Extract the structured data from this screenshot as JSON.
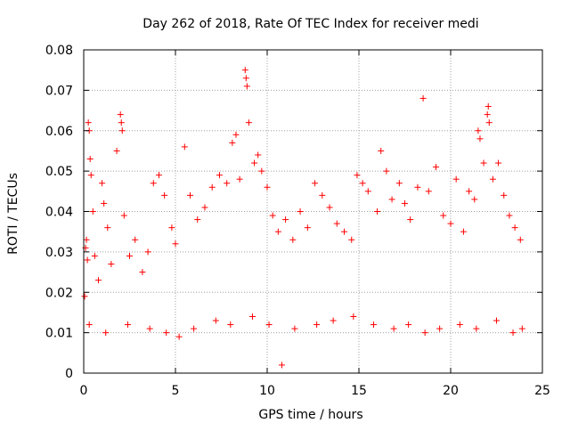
{
  "chart_data": {
    "type": "scatter",
    "title": "Day 262 of 2018, Rate Of TEC Index for receiver medi",
    "xlabel": "GPS time / hours",
    "ylabel": "ROTI / TECUs",
    "xlim": [
      0,
      25
    ],
    "ylim": [
      0,
      0.08
    ],
    "xticks": [
      0,
      5,
      10,
      15,
      20,
      25
    ],
    "xtick_labels": [
      "0",
      "5",
      "10",
      "15",
      "20",
      "25"
    ],
    "yticks": [
      0,
      0.01,
      0.02,
      0.03,
      0.04,
      0.05,
      0.06,
      0.07,
      0.08
    ],
    "ytick_labels": [
      "0",
      "0.01",
      "0.02",
      "0.03",
      "0.04",
      "0.05",
      "0.06",
      "0.07",
      "0.08"
    ],
    "grid": true,
    "legend": false,
    "marker": "plus",
    "marker_color": "#ff0000",
    "series": [
      {
        "name": "ROTI",
        "points": [
          [
            0.05,
            0.019
          ],
          [
            0.1,
            0.031
          ],
          [
            0.15,
            0.033
          ],
          [
            0.2,
            0.028
          ],
          [
            0.25,
            0.062
          ],
          [
            0.3,
            0.06
          ],
          [
            0.35,
            0.053
          ],
          [
            0.4,
            0.049
          ],
          [
            0.5,
            0.04
          ],
          [
            0.6,
            0.029
          ],
          [
            0.8,
            0.023
          ],
          [
            1.0,
            0.047
          ],
          [
            1.1,
            0.042
          ],
          [
            1.3,
            0.036
          ],
          [
            1.5,
            0.027
          ],
          [
            1.8,
            0.055
          ],
          [
            2.0,
            0.064
          ],
          [
            2.05,
            0.062
          ],
          [
            2.1,
            0.06
          ],
          [
            2.2,
            0.039
          ],
          [
            2.5,
            0.029
          ],
          [
            2.8,
            0.033
          ],
          [
            3.2,
            0.025
          ],
          [
            3.5,
            0.03
          ],
          [
            3.8,
            0.047
          ],
          [
            4.1,
            0.049
          ],
          [
            4.4,
            0.044
          ],
          [
            4.8,
            0.036
          ],
          [
            5.0,
            0.032
          ],
          [
            5.5,
            0.056
          ],
          [
            5.8,
            0.044
          ],
          [
            6.2,
            0.038
          ],
          [
            6.6,
            0.041
          ],
          [
            7.0,
            0.046
          ],
          [
            7.4,
            0.049
          ],
          [
            7.8,
            0.047
          ],
          [
            8.1,
            0.057
          ],
          [
            8.3,
            0.059
          ],
          [
            8.5,
            0.048
          ],
          [
            8.8,
            0.075
          ],
          [
            8.85,
            0.073
          ],
          [
            8.9,
            0.071
          ],
          [
            9.0,
            0.062
          ],
          [
            9.3,
            0.052
          ],
          [
            9.5,
            0.054
          ],
          [
            9.7,
            0.05
          ],
          [
            10.0,
            0.046
          ],
          [
            10.3,
            0.039
          ],
          [
            10.6,
            0.035
          ],
          [
            11.0,
            0.038
          ],
          [
            11.4,
            0.033
          ],
          [
            11.8,
            0.04
          ],
          [
            12.2,
            0.036
          ],
          [
            12.6,
            0.047
          ],
          [
            13.0,
            0.044
          ],
          [
            13.4,
            0.041
          ],
          [
            13.8,
            0.037
          ],
          [
            14.2,
            0.035
          ],
          [
            14.6,
            0.033
          ],
          [
            14.9,
            0.049
          ],
          [
            15.2,
            0.047
          ],
          [
            15.5,
            0.045
          ],
          [
            16.0,
            0.04
          ],
          [
            16.2,
            0.055
          ],
          [
            16.5,
            0.05
          ],
          [
            16.8,
            0.043
          ],
          [
            17.2,
            0.047
          ],
          [
            17.5,
            0.042
          ],
          [
            17.8,
            0.038
          ],
          [
            18.2,
            0.046
          ],
          [
            18.5,
            0.068
          ],
          [
            18.8,
            0.045
          ],
          [
            19.2,
            0.051
          ],
          [
            19.6,
            0.039
          ],
          [
            20.0,
            0.037
          ],
          [
            20.3,
            0.048
          ],
          [
            20.7,
            0.035
          ],
          [
            21.0,
            0.045
          ],
          [
            21.3,
            0.043
          ],
          [
            21.5,
            0.06
          ],
          [
            21.6,
            0.058
          ],
          [
            21.8,
            0.052
          ],
          [
            22.0,
            0.064
          ],
          [
            22.05,
            0.066
          ],
          [
            22.1,
            0.062
          ],
          [
            22.3,
            0.048
          ],
          [
            22.6,
            0.052
          ],
          [
            22.9,
            0.044
          ],
          [
            23.2,
            0.039
          ],
          [
            23.5,
            0.036
          ],
          [
            23.8,
            0.033
          ],
          [
            0.3,
            0.012
          ],
          [
            1.2,
            0.01
          ],
          [
            2.4,
            0.012
          ],
          [
            3.6,
            0.011
          ],
          [
            4.5,
            0.01
          ],
          [
            5.2,
            0.009
          ],
          [
            6.0,
            0.011
          ],
          [
            7.2,
            0.013
          ],
          [
            8.0,
            0.012
          ],
          [
            9.2,
            0.014
          ],
          [
            10.1,
            0.012
          ],
          [
            10.8,
            0.002
          ],
          [
            11.5,
            0.011
          ],
          [
            12.7,
            0.012
          ],
          [
            13.6,
            0.013
          ],
          [
            14.7,
            0.014
          ],
          [
            15.8,
            0.012
          ],
          [
            16.9,
            0.011
          ],
          [
            17.7,
            0.012
          ],
          [
            18.6,
            0.01
          ],
          [
            19.4,
            0.011
          ],
          [
            20.5,
            0.012
          ],
          [
            21.4,
            0.011
          ],
          [
            22.5,
            0.013
          ],
          [
            23.4,
            0.01
          ],
          [
            23.9,
            0.011
          ]
        ]
      }
    ]
  }
}
